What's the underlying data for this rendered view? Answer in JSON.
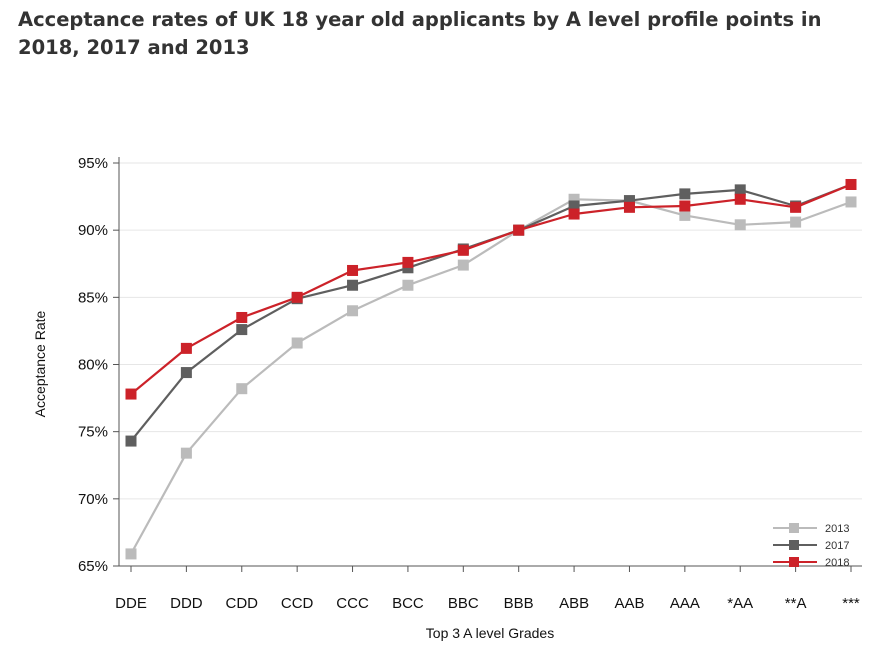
{
  "chart_data": {
    "type": "line",
    "title": "Acceptance rates of UK 18 year old applicants by A level profile points in 2018, 2017 and 2013",
    "xlabel": "Top 3 A level Grades",
    "ylabel": "Acceptance Rate",
    "categories": [
      "DDE",
      "DDD",
      "CDD",
      "CCD",
      "CCC",
      "BCC",
      "BBC",
      "BBB",
      "ABB",
      "AAB",
      "AAA",
      "*AA",
      "**A",
      "***"
    ],
    "ylim": [
      65,
      95
    ],
    "yticks": [
      65,
      70,
      75,
      80,
      85,
      90,
      95
    ],
    "ytick_labels": [
      "65%",
      "70%",
      "75%",
      "80%",
      "85%",
      "90%",
      "95%"
    ],
    "grid": true,
    "legend_position": "bottom-right",
    "series": [
      {
        "name": "2013",
        "color": "#bbbbbb",
        "values": [
          65.9,
          73.4,
          78.2,
          81.6,
          84.0,
          85.9,
          87.4,
          90.0,
          92.3,
          92.2,
          91.1,
          90.4,
          90.6,
          92.1
        ]
      },
      {
        "name": "2017",
        "color": "#5f5f5f",
        "values": [
          74.3,
          79.4,
          82.6,
          84.9,
          85.9,
          87.2,
          88.6,
          90.0,
          91.8,
          92.2,
          92.7,
          93.0,
          91.8,
          93.4
        ]
      },
      {
        "name": "2018",
        "color": "#cc2229",
        "values": [
          77.8,
          81.2,
          83.5,
          85.0,
          87.0,
          87.6,
          88.5,
          90.0,
          91.2,
          91.7,
          91.8,
          92.3,
          91.7,
          93.4
        ]
      }
    ]
  }
}
